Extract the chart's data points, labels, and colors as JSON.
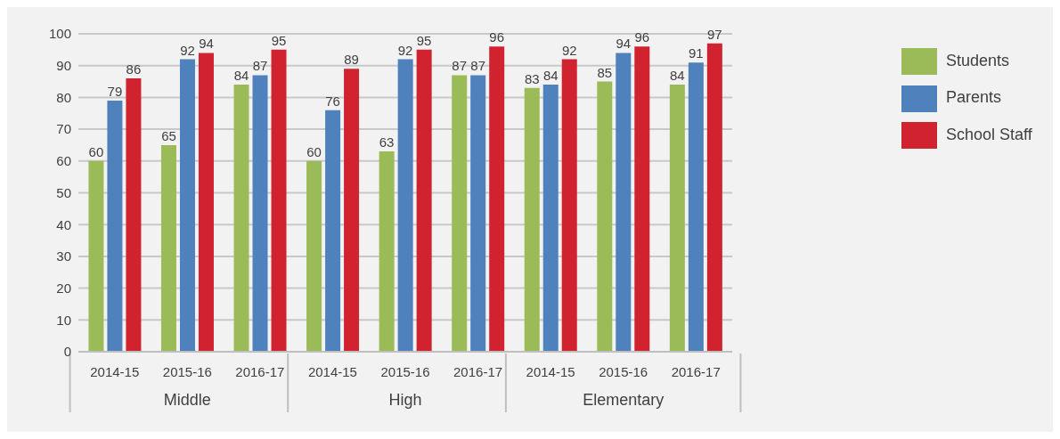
{
  "chart_data": {
    "type": "bar",
    "categories": [
      "2014-15",
      "2015-16",
      "2016-17",
      "2014-15",
      "2015-16",
      "2016-17",
      "2014-15",
      "2015-16",
      "2016-17"
    ],
    "annotations": [
      "Middle",
      "High",
      "Elementary"
    ],
    "series": [
      {
        "name": "Students",
        "color": "#9bbb59",
        "values": [
          60,
          65,
          84,
          60,
          63,
          87,
          83,
          85,
          84
        ]
      },
      {
        "name": "Parents",
        "color": "#4f81bd",
        "values": [
          79,
          92,
          87,
          76,
          92,
          87,
          84,
          94,
          91
        ]
      },
      {
        "name": "School Staff",
        "color": "#d0232f",
        "values": [
          86,
          94,
          95,
          89,
          95,
          96,
          92,
          96,
          97
        ]
      }
    ],
    "ylim": [
      0,
      100
    ],
    "yticks": [
      0,
      10,
      20,
      30,
      40,
      50,
      60,
      70,
      80,
      90,
      100
    ],
    "grid": "y",
    "legend": "top right",
    "data_labels": true
  }
}
